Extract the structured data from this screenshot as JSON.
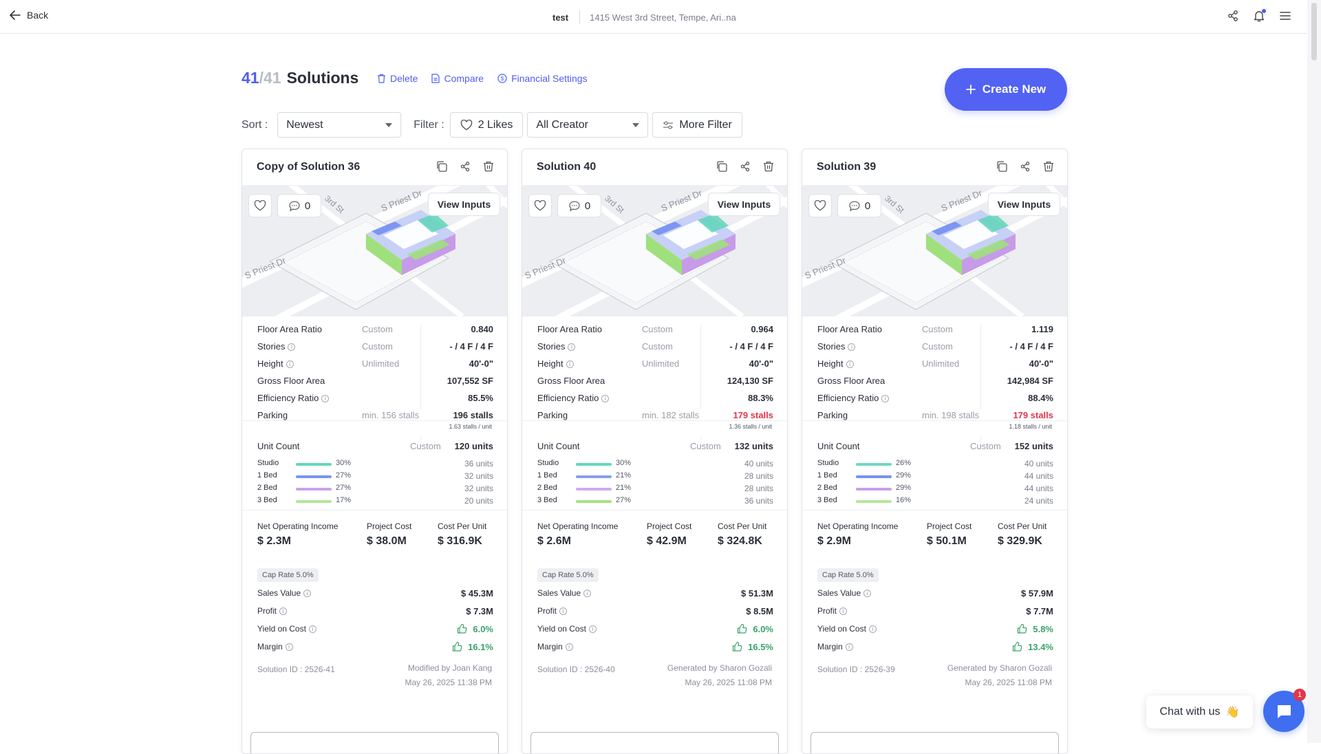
{
  "topbar": {
    "back_label": "Back",
    "project_name": "test",
    "address": "1415 West 3rd Street, Tempe, Ari..na"
  },
  "header": {
    "count": "41",
    "total": "/41",
    "title": "Solutions",
    "delete_label": "Delete",
    "compare_label": "Compare",
    "financial_label": "Financial Settings",
    "create_label": "Create New"
  },
  "toolbar": {
    "sort_label": "Sort :",
    "sort_value": "Newest",
    "filter_label": "Filter :",
    "likes_label": "2 Likes",
    "creator_value": "All Creator",
    "more_filter_label": "More Filter"
  },
  "labels": {
    "view_inputs": "View Inputs",
    "far": "Floor Area Ratio",
    "stories": "Stories",
    "height": "Height",
    "gfa": "Gross Floor Area",
    "eff": "Efficiency Ratio",
    "parking": "Parking",
    "custom": "Custom",
    "unlimited": "Unlimited",
    "unit_count": "Unit Count",
    "studio": "Studio",
    "bed1": "1 Bed",
    "bed2": "2 Bed",
    "bed3": "3 Bed",
    "noi": "Net Operating Income",
    "project_cost": "Project Cost",
    "cost_per_unit": "Cost Per Unit",
    "cap_rate": "Cap Rate 5.0%",
    "sales_value": "Sales Value",
    "profit": "Profit",
    "yield": "Yield on Cost",
    "margin": "Margin",
    "map_street": "S Priest Dr",
    "map_street2": "S Priest Dr",
    "map_street3": "3rd St"
  },
  "colors": {
    "accent": "#4f5df0",
    "studio": "#5fd6b9",
    "bed1": "#6f8cf0",
    "bed2": "#c79be8",
    "bed3": "#9fe07d",
    "warning": "#e0364a",
    "positive": "#3aa26a"
  },
  "cards": [
    {
      "title": "Copy of Solution 36",
      "comments": "0",
      "far": "0.840",
      "stories": "- / 4 F / 4 F",
      "height": "40'-0\"",
      "gfa": "107,552 SF",
      "efficiency": "85.5%",
      "parking_min": "min. 156 stalls",
      "parking": "196 stalls",
      "parking_sub": "1.63 stalls / unit",
      "parking_alert": false,
      "units": "120 units",
      "studio_pct": "30%",
      "studio_units": "36 units",
      "studio_frac": 0.3,
      "bed1_pct": "27%",
      "bed1_units": "32 units",
      "bed1_frac": 0.27,
      "bed2_pct": "27%",
      "bed2_units": "32 units",
      "bed2_frac": 0.27,
      "bed3_pct": "17%",
      "bed3_units": "20 units",
      "bed3_frac": 0.17,
      "noi": "$ 2.3M",
      "project_cost": "$ 38.0M",
      "cost_per_unit": "$ 316.9K",
      "sales_value": "$ 45.3M",
      "profit": "$ 7.3M",
      "yield": "6.0%",
      "margin": "16.1%",
      "solution_id": "Solution ID : 2526-41",
      "modified_by": "Modified by Joan Kang",
      "date": "May 26, 2025 11:38 PM"
    },
    {
      "title": "Solution 40",
      "comments": "0",
      "far": "0.964",
      "stories": "- / 4 F / 4 F",
      "height": "40'-0\"",
      "gfa": "124,130 SF",
      "efficiency": "88.3%",
      "parking_min": "min. 182 stalls",
      "parking": "179 stalls",
      "parking_sub": "1.36 stalls / unit",
      "parking_alert": true,
      "units": "132 units",
      "studio_pct": "30%",
      "studio_units": "40 units",
      "studio_frac": 0.3,
      "bed1_pct": "21%",
      "bed1_units": "28 units",
      "bed1_frac": 0.21,
      "bed2_pct": "21%",
      "bed2_units": "28 units",
      "bed2_frac": 0.21,
      "bed3_pct": "27%",
      "bed3_units": "36 units",
      "bed3_frac": 0.27,
      "noi": "$ 2.6M",
      "project_cost": "$ 42.9M",
      "cost_per_unit": "$ 324.8K",
      "sales_value": "$ 51.3M",
      "profit": "$ 8.5M",
      "yield": "6.0%",
      "margin": "16.5%",
      "solution_id": "Solution ID : 2526-40",
      "modified_by": "Generated by Sharon Gozali",
      "date": "May 26, 2025 11:08 PM"
    },
    {
      "title": "Solution 39",
      "comments": "0",
      "far": "1.119",
      "stories": "- / 4 F / 4 F",
      "height": "40'-0\"",
      "gfa": "142,984 SF",
      "efficiency": "88.4%",
      "parking_min": "min. 198 stalls",
      "parking": "179 stalls",
      "parking_sub": "1.18 stalls / unit",
      "parking_alert": true,
      "units": "152 units",
      "studio_pct": "26%",
      "studio_units": "40 units",
      "studio_frac": 0.26,
      "bed1_pct": "29%",
      "bed1_units": "44 units",
      "bed1_frac": 0.29,
      "bed2_pct": "29%",
      "bed2_units": "44 units",
      "bed2_frac": 0.29,
      "bed3_pct": "16%",
      "bed3_units": "24 units",
      "bed3_frac": 0.16,
      "noi": "$ 2.9M",
      "project_cost": "$ 50.1M",
      "cost_per_unit": "$ 329.9K",
      "sales_value": "$ 57.9M",
      "profit": "$ 7.7M",
      "yield": "5.8%",
      "margin": "13.4%",
      "solution_id": "Solution ID : 2526-39",
      "modified_by": "Generated by Sharon Gozali",
      "date": "May 26, 2025 11:08 PM"
    }
  ],
  "chat": {
    "label": "Chat with us",
    "emoji": "👋",
    "badge": "1"
  }
}
